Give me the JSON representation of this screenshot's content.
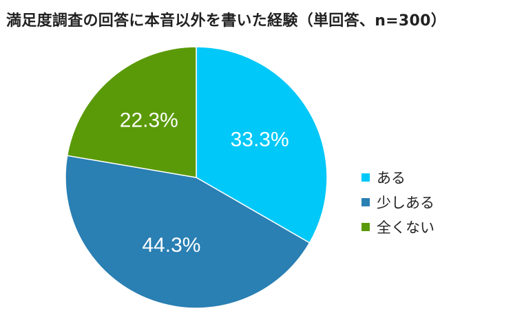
{
  "chart_data": {
    "type": "pie",
    "title": "満足度調査の回答に本音以外を書いた経験（単回答、n=300）",
    "categories": [
      "ある",
      "少しある",
      "全くない"
    ],
    "values": [
      33.3,
      44.3,
      22.3
    ],
    "labels": [
      "33.3%",
      "44.3%",
      "22.3%"
    ],
    "colors": [
      "#00c8f8",
      "#2a7fb3",
      "#5a9a08"
    ],
    "legend": "right",
    "start": "top, clockwise"
  }
}
